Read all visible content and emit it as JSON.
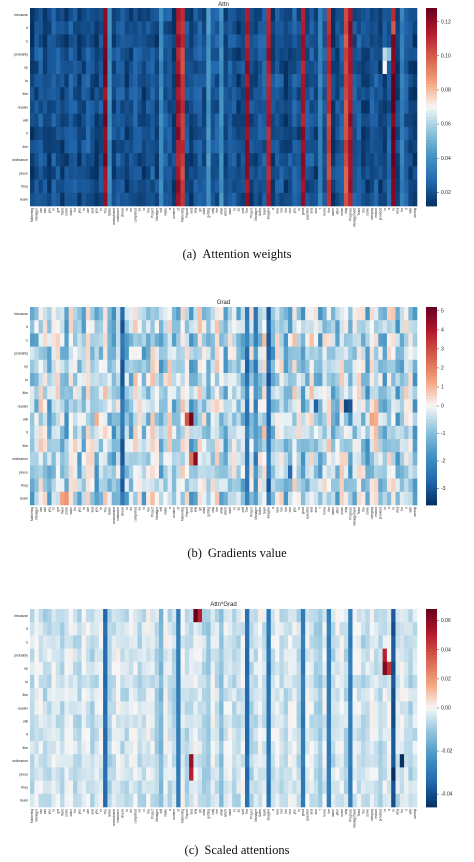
{
  "rows": [
    "because",
    "it",
    "'s",
    "probably",
    "op",
    "to",
    "like",
    "reader",
    "will",
    "it",
    "like",
    "ordinance",
    "piece",
    "they",
    "team"
  ],
  "cols": [
    "Marketing",
    "Manager",
    "can",
    "ask",
    "you",
    "to",
    "get",
    "them",
    "some",
    "value",
    "for",
    "you",
    "to",
    "use",
    "and",
    "you",
    "'re",
    "The",
    "Sales",
    "amendment",
    "ordinance",
    "shows",
    "to",
    "be",
    "completed",
    "on",
    "in",
    "the",
    "Project",
    "Manager",
    "will",
    "make",
    "a",
    "number",
    "of",
    "Marketing",
    "Report",
    "and",
    "any",
    "go",
    "shall",
    "getting",
    "only",
    "the",
    "what",
    "which",
    "want",
    "to",
    "as",
    "well",
    "The",
    "Project",
    "Manager",
    "Sales",
    "team",
    "Imagine",
    "a",
    "new",
    "ten",
    "the",
    "one",
    "you",
    "to",
    "good",
    "question",
    "and",
    "don",
    "'t",
    "know",
    "the",
    "name",
    "after",
    "some",
    "why",
    "Progress",
    "Management",
    "Team",
    "the",
    "some",
    "category",
    "reason",
    "provided",
    "in",
    "a",
    "to",
    "very",
    "for",
    "it",
    "with",
    "weekly"
  ],
  "chart_data": [
    {
      "type": "heatmap",
      "title": "Attn",
      "colormap": "RdBu_r",
      "colorbar_ticks": [
        0.02,
        0.04,
        0.06,
        0.08,
        0.1,
        0.12
      ],
      "vmin": 0.012,
      "vmax": 0.128,
      "seed": 11,
      "base": 0.02,
      "noise": 0.006,
      "column_mean": 0.032,
      "hot_columns": {
        "17": 0.125,
        "34": 0.12,
        "35": 0.11,
        "50": 0.12,
        "55": 0.118,
        "63": 0.12,
        "69": 0.11,
        "73": 0.105,
        "74": 0.12,
        "84": 0.13
      },
      "warm_columns": {
        "18": 0.04,
        "30": 0.038,
        "41": 0.042,
        "44": 0.04,
        "67": 0.036,
        "86": 0.034
      },
      "hot_cells": [
        [
          0,
          84,
          0.11
        ],
        [
          1,
          84,
          0.1
        ],
        [
          3,
          82,
          0.062
        ],
        [
          4,
          82,
          0.07
        ],
        [
          3,
          83,
          0.055
        ]
      ]
    },
    {
      "type": "heatmap",
      "title": "Grad",
      "colormap": "RdBu_r",
      "colorbar_ticks": [
        -3,
        -2,
        -1,
        0,
        1,
        2,
        3,
        4,
        5
      ],
      "vmin": -3.6,
      "vmax": 5.2,
      "seed": 23,
      "base": -0.5,
      "noise": 0.9,
      "column_mean": 0,
      "hot_columns": {},
      "warm_columns": {
        "21": -2.6,
        "50": -2.4,
        "52": -2.0,
        "55": -2.6
      },
      "hot_cells": [
        [
          8,
          37,
          5.0
        ],
        [
          11,
          38,
          4.6
        ],
        [
          8,
          36,
          2.8
        ],
        [
          11,
          37,
          2.2
        ],
        [
          14,
          8,
          1.6
        ],
        [
          14,
          7,
          1.3
        ],
        [
          8,
          79,
          1.3
        ],
        [
          8,
          80,
          1.1
        ],
        [
          8,
          15,
          1.1
        ],
        [
          7,
          73,
          -3.2
        ],
        [
          7,
          74,
          -3.0
        ],
        [
          7,
          66,
          -2.8
        ],
        [
          12,
          60,
          -2.6
        ]
      ]
    },
    {
      "type": "heatmap",
      "title": "Attn*Grad",
      "colormap": "RdBu_r",
      "colorbar_ticks": [
        -0.04,
        -0.02,
        0.0,
        0.02,
        0.04,
        0.06
      ],
      "vmin": -0.046,
      "vmax": 0.068,
      "seed": 37,
      "base": -0.004,
      "noise": 0.004,
      "column_mean": 0,
      "hot_columns": {
        "17": -0.034,
        "34": -0.03,
        "50": -0.034,
        "55": -0.032,
        "63": -0.03,
        "69": -0.03,
        "74": -0.03,
        "84": -0.04
      },
      "warm_columns": {
        "18": -0.008,
        "30": -0.014,
        "41": -0.01,
        "44": -0.012,
        "67": -0.01
      },
      "hot_cells": [
        [
          0,
          38,
          0.068
        ],
        [
          0,
          39,
          0.05
        ],
        [
          11,
          37,
          0.058
        ],
        [
          12,
          37,
          0.05
        ],
        [
          3,
          82,
          0.05
        ],
        [
          4,
          82,
          0.062
        ],
        [
          4,
          83,
          0.045
        ],
        [
          11,
          86,
          -0.046
        ],
        [
          12,
          84,
          -0.046
        ]
      ]
    }
  ],
  "captions": [
    {
      "tag": "(a)",
      "text": "Attention weights"
    },
    {
      "tag": "(b)",
      "text": "Gradients value"
    },
    {
      "tag": "(c)",
      "text": "Scaled attentions"
    }
  ]
}
